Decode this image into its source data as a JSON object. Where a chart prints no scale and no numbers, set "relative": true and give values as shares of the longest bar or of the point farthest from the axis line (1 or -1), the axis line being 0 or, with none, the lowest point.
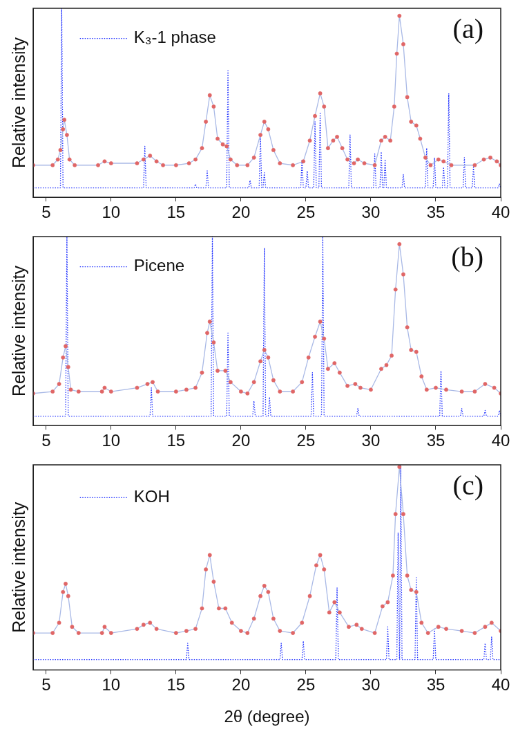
{
  "chart_data": [
    {
      "type": "line",
      "ylabel": "Relative intensity",
      "relative": true,
      "xlim": [
        4,
        40
      ],
      "xticks": [
        5,
        10,
        15,
        20,
        25,
        30,
        35,
        40
      ],
      "grid": false,
      "legend": "top left",
      "annotations": [
        "(a)"
      ],
      "series": [
        {
          "type": "scatter",
          "marker": "circle",
          "color": "#e06666",
          "x": [
            4,
            5.5,
            5.9,
            6.1,
            6.3,
            6.4,
            6.6,
            6.8,
            7.2,
            9,
            9.5,
            10,
            12,
            12.5,
            13,
            13.5,
            14,
            15,
            16,
            16.5,
            17,
            17.3,
            17.6,
            17.9,
            18.2,
            18.6,
            18.9,
            19.2,
            19.7,
            20.5,
            21,
            21.5,
            21.8,
            22.1,
            22.5,
            23,
            24,
            24.8,
            25.3,
            25.7,
            26.1,
            26.4,
            26.7,
            27.1,
            27.4,
            27.8,
            28.2,
            28.7,
            29,
            29.5,
            30.3,
            30.8,
            31.1,
            31.5,
            31.8,
            32.0,
            32.2,
            32.5,
            32.8,
            33.1,
            33.5,
            33.8,
            34.2,
            34.6,
            35.2,
            35.6,
            36.2,
            38,
            38.7,
            39.2,
            39.7,
            40
          ],
          "values": [
            0.17,
            0.17,
            0.2,
            0.25,
            0.36,
            0.41,
            0.33,
            0.2,
            0.17,
            0.17,
            0.19,
            0.18,
            0.18,
            0.2,
            0.22,
            0.19,
            0.17,
            0.17,
            0.18,
            0.2,
            0.26,
            0.4,
            0.54,
            0.48,
            0.31,
            0.28,
            0.27,
            0.2,
            0.17,
            0.17,
            0.21,
            0.33,
            0.4,
            0.36,
            0.25,
            0.18,
            0.17,
            0.19,
            0.3,
            0.43,
            0.55,
            0.48,
            0.26,
            0.3,
            0.32,
            0.26,
            0.2,
            0.18,
            0.2,
            0.18,
            0.17,
            0.3,
            0.32,
            0.3,
            0.48,
            0.76,
            0.96,
            0.81,
            0.53,
            0.4,
            0.38,
            0.31,
            0.21,
            0.17,
            0.2,
            0.19,
            0.17,
            0.17,
            0.2,
            0.21,
            0.19,
            0.17
          ]
        },
        {
          "type": "line",
          "marker": "none",
          "color": "#a9b9e6",
          "x": [
            4,
            5.5,
            5.9,
            6.1,
            6.3,
            6.4,
            6.6,
            6.8,
            7.2,
            9,
            9.5,
            10,
            12,
            12.5,
            13,
            13.5,
            14,
            15,
            16,
            16.5,
            17,
            17.3,
            17.6,
            17.9,
            18.2,
            18.6,
            18.9,
            19.2,
            19.7,
            20.5,
            21,
            21.5,
            21.8,
            22.1,
            22.5,
            23,
            24,
            24.8,
            25.3,
            25.7,
            26.1,
            26.4,
            26.7,
            27.1,
            27.4,
            27.8,
            28.2,
            28.7,
            29,
            29.5,
            30.3,
            30.8,
            31.1,
            31.5,
            31.8,
            32.0,
            32.2,
            32.5,
            32.8,
            33.1,
            33.5,
            33.8,
            34.2,
            34.6,
            35.2,
            35.6,
            36.2,
            38,
            38.7,
            39.2,
            39.7,
            40
          ],
          "values": [
            0.17,
            0.17,
            0.2,
            0.25,
            0.36,
            0.41,
            0.33,
            0.2,
            0.17,
            0.17,
            0.19,
            0.18,
            0.18,
            0.2,
            0.22,
            0.19,
            0.17,
            0.17,
            0.18,
            0.2,
            0.26,
            0.4,
            0.54,
            0.48,
            0.31,
            0.28,
            0.27,
            0.2,
            0.17,
            0.17,
            0.21,
            0.33,
            0.4,
            0.36,
            0.25,
            0.18,
            0.17,
            0.19,
            0.3,
            0.43,
            0.55,
            0.48,
            0.26,
            0.3,
            0.32,
            0.26,
            0.2,
            0.18,
            0.2,
            0.18,
            0.17,
            0.3,
            0.32,
            0.3,
            0.48,
            0.76,
            0.96,
            0.81,
            0.53,
            0.4,
            0.38,
            0.31,
            0.21,
            0.17,
            0.2,
            0.19,
            0.17,
            0.17,
            0.2,
            0.21,
            0.19,
            0.17
          ]
        },
        {
          "type": "line",
          "name": "K₃-1 phase",
          "marker": "none",
          "line_style": "dotted",
          "color": "#2233ff",
          "x": [
            4,
            6.1,
            6.2,
            6.3,
            12.5,
            12.6,
            12.7,
            16.4,
            16.5,
            16.6,
            17.3,
            17.4,
            17.5,
            18.9,
            19.0,
            19.1,
            20.6,
            20.7,
            20.8,
            21.4,
            21.5,
            21.6,
            21.7,
            21.8,
            21.9,
            24.6,
            24.7,
            24.8,
            25.0,
            25.1,
            25.2,
            25.6,
            25.7,
            25.8,
            26.0,
            26.1,
            26.2,
            28.3,
            28.4,
            28.5,
            30.2,
            30.3,
            30.4,
            30.7,
            30.8,
            30.9,
            31.0,
            31.1,
            31.2,
            32.4,
            32.5,
            32.6,
            34.2,
            34.3,
            34.4,
            34.8,
            34.9,
            35.0,
            35.5,
            35.6,
            35.7,
            35.9,
            36.0,
            36.1,
            37.1,
            37.2,
            37.3,
            37.8,
            37.9,
            38.0,
            39.8,
            39.9,
            40
          ],
          "values": [
            0.05,
            0.05,
            1,
            0.05,
            0.05,
            0.27,
            0.05,
            0.05,
            0.07,
            0.05,
            0.05,
            0.14,
            0.05,
            0.05,
            0.67,
            0.05,
            0.05,
            0.09,
            0.05,
            0.05,
            0.32,
            0.05,
            0.05,
            0.13,
            0.05,
            0.05,
            0.2,
            0.05,
            0.05,
            0.14,
            0.05,
            0.05,
            0.4,
            0.05,
            0.05,
            0.45,
            0.05,
            0.05,
            0.33,
            0.05,
            0.05,
            0.23,
            0.05,
            0.05,
            0.24,
            0.05,
            0.05,
            0.2,
            0.05,
            0.05,
            0.12,
            0.05,
            0.05,
            0.26,
            0.05,
            0.05,
            0.21,
            0.05,
            0.05,
            0.16,
            0.05,
            0.05,
            0.55,
            0.05,
            0.05,
            0.21,
            0.05,
            0.05,
            0.16,
            0.05,
            0.05,
            0.07,
            0.05
          ]
        }
      ]
    },
    {
      "type": "line",
      "ylabel": "Relative intensity",
      "relative": true,
      "xlim": [
        4,
        40
      ],
      "xticks": [
        5,
        10,
        15,
        20,
        25,
        30,
        35,
        40
      ],
      "grid": false,
      "legend": "top left",
      "annotations": [
        "(b)"
      ],
      "series": [
        {
          "type": "scatter",
          "marker": "circle",
          "color": "#e06666",
          "x": [
            4,
            5.5,
            6.0,
            6.3,
            6.5,
            6.7,
            6.9,
            7.5,
            9.3,
            9.5,
            10,
            12,
            12.8,
            13.2,
            13.6,
            15,
            15.8,
            16.5,
            17,
            17.4,
            17.6,
            17.9,
            18.2,
            18.8,
            19.2,
            20,
            20.5,
            21,
            21.5,
            21.8,
            22.1,
            22.5,
            23,
            24,
            24.7,
            25.2,
            25.7,
            26.1,
            26.4,
            26.7,
            27.2,
            27.6,
            28.2,
            28.8,
            29.2,
            30,
            30.8,
            31.2,
            31.6,
            31.9,
            32.2,
            32.5,
            32.8,
            33.1,
            33.5,
            33.9,
            34.3,
            35,
            35.8,
            37,
            38,
            38.8,
            39.5,
            40
          ],
          "values": [
            0.17,
            0.18,
            0.22,
            0.36,
            0.42,
            0.31,
            0.19,
            0.18,
            0.18,
            0.2,
            0.18,
            0.2,
            0.22,
            0.23,
            0.18,
            0.18,
            0.19,
            0.2,
            0.28,
            0.49,
            0.55,
            0.44,
            0.29,
            0.29,
            0.23,
            0.18,
            0.17,
            0.23,
            0.34,
            0.4,
            0.36,
            0.24,
            0.18,
            0.18,
            0.23,
            0.36,
            0.47,
            0.55,
            0.46,
            0.3,
            0.33,
            0.28,
            0.21,
            0.22,
            0.2,
            0.19,
            0.3,
            0.32,
            0.37,
            0.72,
            0.96,
            0.8,
            0.52,
            0.4,
            0.39,
            0.26,
            0.19,
            0.2,
            0.19,
            0.18,
            0.18,
            0.22,
            0.2,
            0.17
          ]
        },
        {
          "type": "line",
          "marker": "none",
          "color": "#a9b9e6",
          "x": [
            4,
            5.5,
            6.0,
            6.3,
            6.5,
            6.7,
            6.9,
            7.5,
            9.3,
            9.5,
            10,
            12,
            12.8,
            13.2,
            13.6,
            15,
            15.8,
            16.5,
            17,
            17.4,
            17.6,
            17.9,
            18.2,
            18.8,
            19.2,
            20,
            20.5,
            21,
            21.5,
            21.8,
            22.1,
            22.5,
            23,
            24,
            24.7,
            25.2,
            25.7,
            26.1,
            26.4,
            26.7,
            27.2,
            27.6,
            28.2,
            28.8,
            29.2,
            30,
            30.8,
            31.2,
            31.6,
            31.9,
            32.2,
            32.5,
            32.8,
            33.1,
            33.5,
            33.9,
            34.3,
            35,
            35.8,
            37,
            38,
            38.8,
            39.5,
            40
          ],
          "values": [
            0.17,
            0.18,
            0.22,
            0.36,
            0.42,
            0.31,
            0.19,
            0.18,
            0.18,
            0.2,
            0.18,
            0.2,
            0.22,
            0.23,
            0.18,
            0.18,
            0.19,
            0.2,
            0.28,
            0.49,
            0.55,
            0.44,
            0.29,
            0.29,
            0.23,
            0.18,
            0.17,
            0.23,
            0.34,
            0.4,
            0.36,
            0.24,
            0.18,
            0.18,
            0.23,
            0.36,
            0.47,
            0.55,
            0.46,
            0.3,
            0.33,
            0.28,
            0.21,
            0.22,
            0.2,
            0.19,
            0.3,
            0.32,
            0.37,
            0.72,
            0.96,
            0.8,
            0.52,
            0.4,
            0.39,
            0.26,
            0.19,
            0.2,
            0.19,
            0.18,
            0.18,
            0.22,
            0.2,
            0.17
          ]
        },
        {
          "type": "line",
          "name": "Picene",
          "marker": "none",
          "line_style": "dotted",
          "color": "#2233ff",
          "x": [
            4,
            6.5,
            6.6,
            6.7,
            13.0,
            13.1,
            13.2,
            17.7,
            17.8,
            17.9,
            18.9,
            19.0,
            19.1,
            20.9,
            21.0,
            21.1,
            21.7,
            21.8,
            21.9,
            22.1,
            22.2,
            22.3,
            25.4,
            25.5,
            25.6,
            26.2,
            26.3,
            26.4,
            28.9,
            29.0,
            29.1,
            35.3,
            35.4,
            35.5,
            36.9,
            37.0,
            37.1,
            38.7,
            38.8,
            38.9,
            39.8,
            39.9,
            40
          ],
          "values": [
            0.05,
            0.05,
            1,
            0.05,
            0.05,
            0.2,
            0.05,
            0.05,
            1,
            0.05,
            0.05,
            0.49,
            0.05,
            0.05,
            0.13,
            0.05,
            0.05,
            0.94,
            0.05,
            0.05,
            0.15,
            0.05,
            0.05,
            0.28,
            0.05,
            0.05,
            1,
            0.05,
            0.05,
            0.09,
            0.05,
            0.05,
            0.29,
            0.05,
            0.05,
            0.09,
            0.05,
            0.05,
            0.08,
            0.05,
            0.05,
            0.08,
            0.05
          ]
        }
      ]
    },
    {
      "type": "line",
      "ylabel": "Relative intensity",
      "xlabel": "2θ (degree)",
      "relative": true,
      "xlim": [
        4,
        40
      ],
      "xticks": [
        5,
        10,
        15,
        20,
        25,
        30,
        35,
        40
      ],
      "grid": false,
      "legend": "top left",
      "annotations": [
        "(c)"
      ],
      "series": [
        {
          "type": "scatter",
          "marker": "circle",
          "color": "#e06666",
          "x": [
            4,
            5.5,
            6,
            6.3,
            6.5,
            6.7,
            7,
            7.5,
            9.3,
            9.5,
            10,
            12,
            12.5,
            13,
            13.5,
            15,
            15.8,
            16.5,
            17,
            17.3,
            17.6,
            17.9,
            18.3,
            18.8,
            19.3,
            20,
            20.5,
            21,
            21.5,
            21.8,
            22.1,
            22.5,
            23,
            24,
            24.7,
            25.3,
            25.8,
            26.1,
            26.4,
            26.8,
            27.2,
            27.6,
            28.3,
            28.9,
            29.3,
            30.3,
            30.9,
            31.3,
            31.7,
            31.9,
            32.2,
            32.5,
            32.8,
            33.1,
            33.5,
            33.9,
            34.4,
            35.2,
            35.8,
            37,
            38,
            38.8,
            39.3,
            40
          ],
          "values": [
            0.18,
            0.18,
            0.23,
            0.38,
            0.42,
            0.36,
            0.21,
            0.18,
            0.18,
            0.21,
            0.18,
            0.2,
            0.22,
            0.23,
            0.2,
            0.18,
            0.19,
            0.2,
            0.3,
            0.49,
            0.56,
            0.43,
            0.3,
            0.3,
            0.23,
            0.19,
            0.18,
            0.25,
            0.36,
            0.41,
            0.38,
            0.25,
            0.19,
            0.18,
            0.23,
            0.36,
            0.51,
            0.56,
            0.49,
            0.28,
            0.33,
            0.28,
            0.21,
            0.22,
            0.2,
            0.18,
            0.31,
            0.33,
            0.46,
            0.76,
            0.99,
            0.76,
            0.46,
            0.39,
            0.38,
            0.23,
            0.18,
            0.21,
            0.2,
            0.19,
            0.18,
            0.21,
            0.23,
            0.19
          ]
        },
        {
          "type": "line",
          "marker": "none",
          "color": "#a9b9e6",
          "x": [
            4,
            5.5,
            6,
            6.3,
            6.5,
            6.7,
            7,
            7.5,
            9.3,
            9.5,
            10,
            12,
            12.5,
            13,
            13.5,
            15,
            15.8,
            16.5,
            17,
            17.3,
            17.6,
            17.9,
            18.3,
            18.8,
            19.3,
            20,
            20.5,
            21,
            21.5,
            21.8,
            22.1,
            22.5,
            23,
            24,
            24.7,
            25.3,
            25.8,
            26.1,
            26.4,
            26.8,
            27.2,
            27.6,
            28.3,
            28.9,
            29.3,
            30.3,
            30.9,
            31.3,
            31.7,
            31.9,
            32.2,
            32.5,
            32.8,
            33.1,
            33.5,
            33.9,
            34.4,
            35.2,
            35.8,
            37,
            38,
            38.8,
            39.3,
            40
          ],
          "values": [
            0.18,
            0.18,
            0.23,
            0.38,
            0.42,
            0.36,
            0.21,
            0.18,
            0.18,
            0.21,
            0.18,
            0.2,
            0.22,
            0.23,
            0.2,
            0.18,
            0.19,
            0.2,
            0.3,
            0.49,
            0.56,
            0.43,
            0.3,
            0.3,
            0.23,
            0.19,
            0.18,
            0.25,
            0.36,
            0.41,
            0.38,
            0.25,
            0.19,
            0.18,
            0.23,
            0.36,
            0.51,
            0.56,
            0.49,
            0.28,
            0.33,
            0.28,
            0.21,
            0.22,
            0.2,
            0.18,
            0.31,
            0.33,
            0.46,
            0.76,
            0.99,
            0.76,
            0.46,
            0.39,
            0.38,
            0.23,
            0.18,
            0.21,
            0.2,
            0.19,
            0.18,
            0.21,
            0.23,
            0.19
          ]
        },
        {
          "type": "line",
          "name": "KOH",
          "marker": "none",
          "line_style": "dotted",
          "color": "#2233ff",
          "x": [
            4,
            15.8,
            15.9,
            16.0,
            23.0,
            23.1,
            23.2,
            24.7,
            24.8,
            24.9,
            27.3,
            27.4,
            27.5,
            31.2,
            31.3,
            31.4,
            32.0,
            32.1,
            32.2,
            32.22,
            32.3,
            32.4,
            33.4,
            33.5,
            33.6,
            34.8,
            34.9,
            35.0,
            38.7,
            38.8,
            38.9,
            39.2,
            39.3,
            39.4,
            40
          ],
          "values": [
            0.05,
            0.05,
            0.13,
            0.05,
            0.05,
            0.13,
            0.05,
            0.05,
            0.14,
            0.05,
            0.05,
            0.4,
            0.05,
            0.05,
            0.21,
            0.05,
            0.05,
            0.67,
            0.05,
            0.05,
            1,
            0.05,
            0.05,
            0.45,
            0.05,
            0.05,
            0.2,
            0.05,
            0.05,
            0.13,
            0.05,
            0.05,
            0.16,
            0.05,
            0.05
          ]
        }
      ]
    }
  ]
}
